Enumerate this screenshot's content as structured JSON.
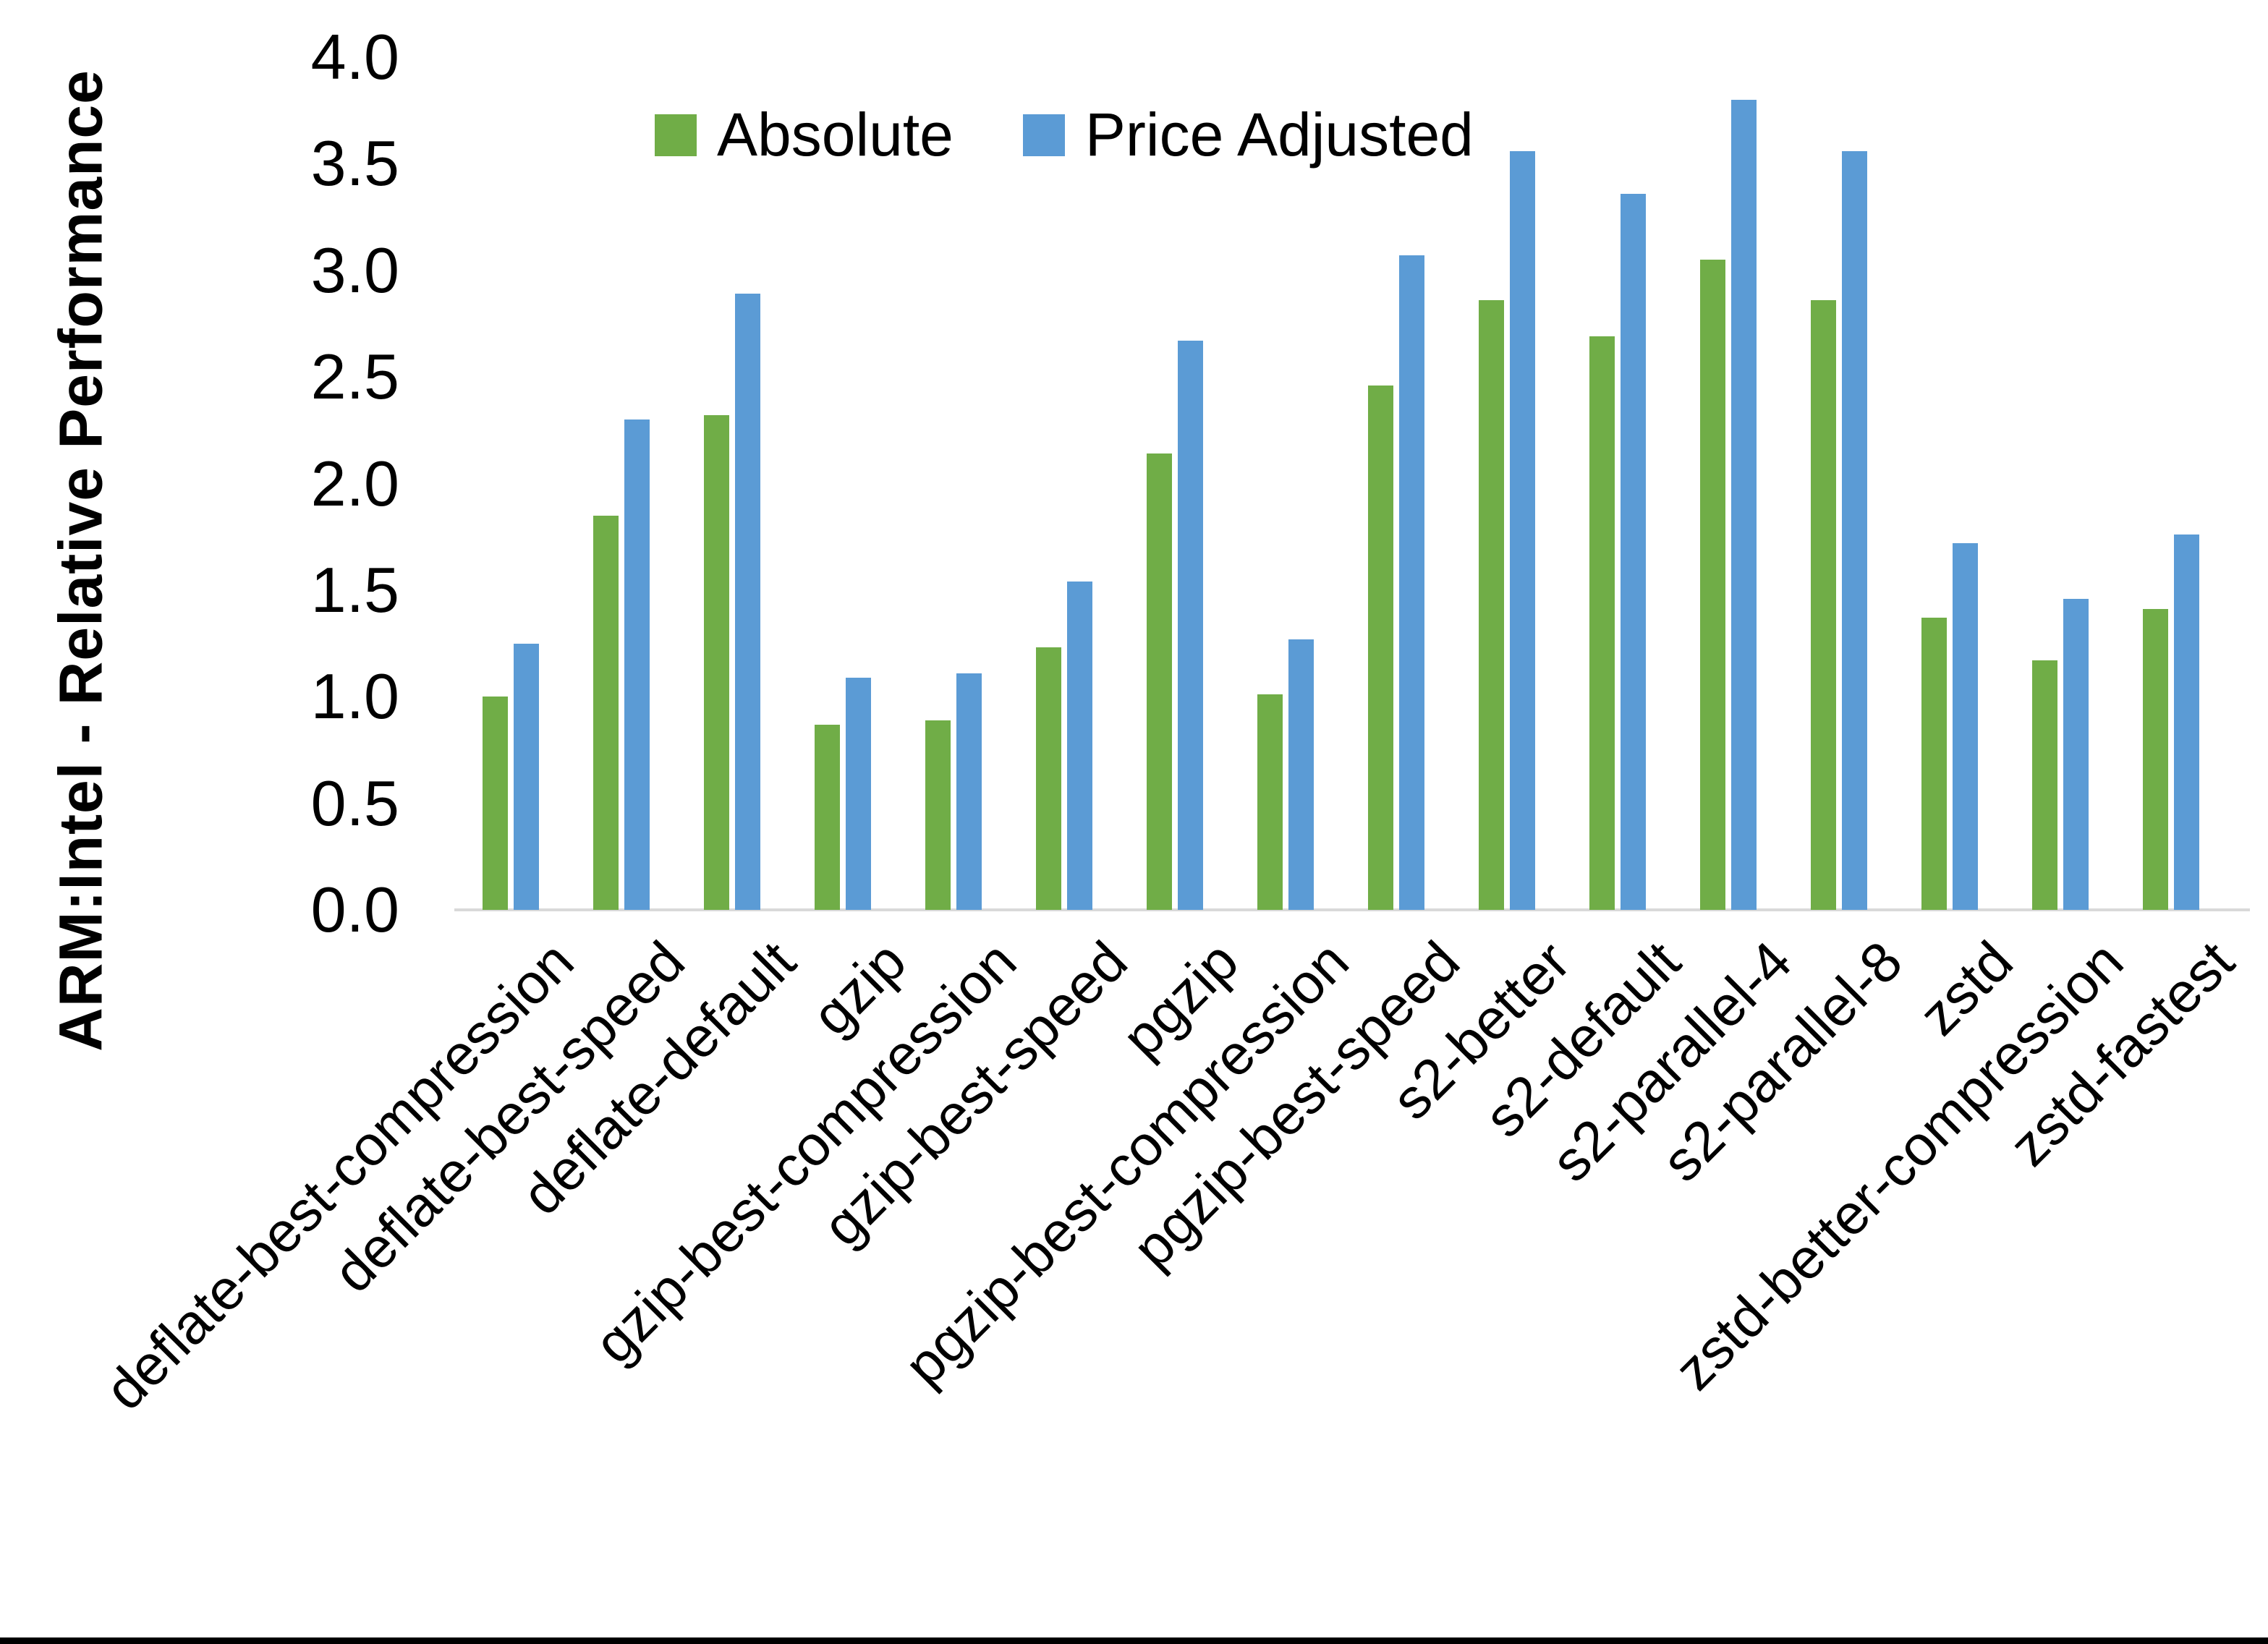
{
  "y_axis": {
    "title": "ARM:Intel - Relative Performance"
  },
  "legend": {
    "items": [
      {
        "label": "Absolute",
        "color": "#70AD47"
      },
      {
        "label": "Price Adjusted",
        "color": "#5B9BD5"
      }
    ]
  },
  "chart_data": {
    "type": "bar",
    "title": "",
    "xlabel": "",
    "ylabel": "ARM:Intel - Relative Performance",
    "ylim": [
      0.0,
      4.0
    ],
    "yticks": [
      "0.0",
      "0.5",
      "1.0",
      "1.5",
      "2.0",
      "2.5",
      "3.0",
      "3.5",
      "4.0"
    ],
    "grid": false,
    "legend_position": "top-center",
    "axis_line_color": "#D9D9D9",
    "categories": [
      "deflate-best-compression",
      "deflate-best-speed",
      "deflate-default",
      "gzip",
      "gzip-best-compression",
      "gzip-best-speed",
      "pgzip",
      "pgzip-best-compression",
      "pgzip-best-speed",
      "s2-better",
      "s2-default",
      "s2-parallel-4",
      "s2-parallel-8",
      "zstd",
      "zstd-better-compression",
      "zstd-fastest"
    ],
    "series": [
      {
        "name": "Absolute",
        "color": "#70AD47",
        "values": [
          1.0,
          1.85,
          2.32,
          0.87,
          0.89,
          1.23,
          2.14,
          1.01,
          2.46,
          2.86,
          2.69,
          3.05,
          2.86,
          1.37,
          1.17,
          1.41
        ]
      },
      {
        "name": "Price Adjusted",
        "color": "#5B9BD5",
        "values": [
          1.25,
          2.3,
          2.89,
          1.09,
          1.11,
          1.54,
          2.67,
          1.27,
          3.07,
          3.56,
          3.36,
          3.8,
          3.56,
          1.72,
          1.46,
          1.76
        ]
      }
    ]
  }
}
